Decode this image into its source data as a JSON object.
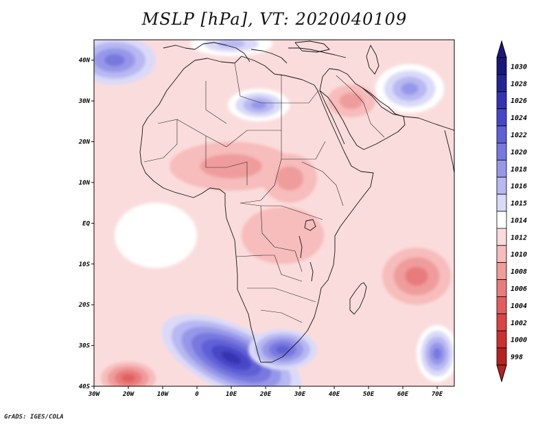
{
  "title": "MSLP [hPa], VT: 2020040109",
  "footer": "GrADS: IGES/COLA",
  "map": {
    "lon_min": -30,
    "lon_max": 75,
    "lat_min": -40,
    "lat_max": 45,
    "lon_ticks": [
      {
        "value": -30,
        "label": "30W"
      },
      {
        "value": -20,
        "label": "20W"
      },
      {
        "value": -10,
        "label": "10W"
      },
      {
        "value": 0,
        "label": "0"
      },
      {
        "value": 10,
        "label": "10E"
      },
      {
        "value": 20,
        "label": "20E"
      },
      {
        "value": 30,
        "label": "30E"
      },
      {
        "value": 40,
        "label": "40E"
      },
      {
        "value": 50,
        "label": "50E"
      },
      {
        "value": 60,
        "label": "60E"
      },
      {
        "value": 70,
        "label": "70E"
      }
    ],
    "lat_ticks": [
      {
        "value": 40,
        "label": "40N"
      },
      {
        "value": 30,
        "label": "30N"
      },
      {
        "value": 20,
        "label": "20N"
      },
      {
        "value": 10,
        "label": "10N"
      },
      {
        "value": 0,
        "label": "EQ"
      },
      {
        "value": -10,
        "label": "10S"
      },
      {
        "value": -20,
        "label": "20S"
      },
      {
        "value": -30,
        "label": "30S"
      },
      {
        "value": -40,
        "label": "40S"
      }
    ],
    "background_level": 1012,
    "pressure_systems": [
      {
        "name": "south-atlantic-high",
        "lon": 10,
        "lat": -33,
        "rx": 22,
        "ry": 8,
        "rot": 25,
        "levels": [
          1015,
          1016,
          1018,
          1020,
          1022,
          1024,
          1026
        ]
      },
      {
        "name": "southern-africa-high",
        "lon": 25,
        "lat": -31,
        "rx": 10,
        "ry": 5,
        "rot": 0,
        "levels": [
          1015,
          1016,
          1018,
          1020,
          1022
        ]
      },
      {
        "name": "south-indian-high",
        "lon": 70,
        "lat": -32,
        "rx": 6,
        "ry": 7,
        "rot": 0,
        "levels": [
          1014,
          1015,
          1016,
          1018,
          1020
        ]
      },
      {
        "name": "north-atlantic-high",
        "lon": -24,
        "lat": 40,
        "rx": 12,
        "ry": 6,
        "rot": 0,
        "levels": [
          1015,
          1016,
          1018,
          1020
        ]
      },
      {
        "name": "libya-high",
        "lon": 18,
        "lat": 29,
        "rx": 9,
        "ry": 4,
        "rot": 0,
        "levels": [
          1014,
          1015,
          1016,
          1018
        ]
      },
      {
        "name": "iran-high",
        "lon": 62,
        "lat": 33,
        "rx": 10,
        "ry": 6,
        "rot": 0,
        "levels": [
          1014,
          1015,
          1016,
          1018
        ]
      },
      {
        "name": "europe-high",
        "lon": 10,
        "lat": 44,
        "rx": 12,
        "ry": 3,
        "rot": 0,
        "levels": [
          1014,
          1015,
          1016
        ]
      },
      {
        "name": "sahara-low",
        "lon": 10,
        "lat": 14,
        "rx": 18,
        "ry": 6,
        "rot": 0,
        "levels": [
          1010,
          1008
        ]
      },
      {
        "name": "sudan-low",
        "lon": 27,
        "lat": 11,
        "rx": 8,
        "ry": 6,
        "rot": 0,
        "levels": [
          1010,
          1008
        ]
      },
      {
        "name": "arabia-low",
        "lon": 45,
        "lat": 30,
        "rx": 7,
        "ry": 4,
        "rot": 0,
        "levels": [
          1010,
          1008
        ]
      },
      {
        "name": "madagascar-low",
        "lon": 64,
        "lat": -13,
        "rx": 10,
        "ry": 7,
        "rot": 0,
        "levels": [
          1010,
          1008,
          1006
        ]
      },
      {
        "name": "southwest-atlantic-low",
        "lon": -20,
        "lat": -38,
        "rx": 8,
        "ry": 4,
        "rot": 0,
        "levels": [
          1010,
          1008,
          1006,
          1004
        ]
      },
      {
        "name": "east-africa-low",
        "lon": 25,
        "lat": -3,
        "rx": 12,
        "ry": 7,
        "rot": 0,
        "levels": [
          1010
        ]
      },
      {
        "name": "tropical-atlantic-ridge",
        "lon": -12,
        "lat": -3,
        "rx": 12,
        "ry": 8,
        "rot": 0,
        "levels": [
          1014
        ]
      }
    ]
  },
  "colorbar": {
    "levels": [
      {
        "label": "1030",
        "color": "#1c1878"
      },
      {
        "label": "1028",
        "color": "#262495"
      },
      {
        "label": "1026",
        "color": "#3434b2"
      },
      {
        "label": "1024",
        "color": "#4846c8"
      },
      {
        "label": "1022",
        "color": "#6060d6"
      },
      {
        "label": "1020",
        "color": "#7878df"
      },
      {
        "label": "1018",
        "color": "#9797e9"
      },
      {
        "label": "1016",
        "color": "#b8b8f2"
      },
      {
        "label": "1015",
        "color": "#dadaf8"
      },
      {
        "label": "1014",
        "color": "#ffffff"
      },
      {
        "label": "1012",
        "color": "#fbdcdc"
      },
      {
        "label": "1010",
        "color": "#f7bcbc"
      },
      {
        "label": "1008",
        "color": "#ef9c9c"
      },
      {
        "label": "1006",
        "color": "#e87c7c"
      },
      {
        "label": "1004",
        "color": "#e25e5e"
      },
      {
        "label": "1002",
        "color": "#d94444"
      },
      {
        "label": "1000",
        "color": "#cc2f2f"
      },
      {
        "label": "998",
        "color": "#b42222"
      }
    ]
  }
}
